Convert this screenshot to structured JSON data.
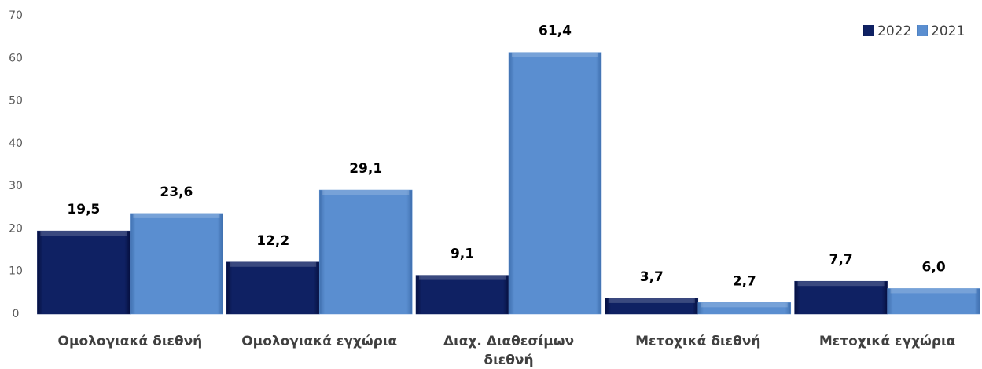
{
  "chart_data": {
    "type": "bar",
    "categories": [
      "Ομολογιακά διεθνή",
      "Ομολογιακά εγχώρια",
      "Διαχ. Διαθεσίμων διεθνή",
      "Μετοχικά διεθνή",
      "Μετοχικά εγχώρια"
    ],
    "series": [
      {
        "name": "2022",
        "color": "#0f2163",
        "values": [
          19.5,
          12.2,
          9.1,
          3.7,
          7.7
        ],
        "value_labels": [
          "19,5",
          "12,2",
          "9,1",
          "3,7",
          "7,7"
        ]
      },
      {
        "name": "2021",
        "color": "#5a8ed0",
        "values": [
          23.6,
          29.1,
          61.4,
          2.7,
          6.0
        ],
        "value_labels": [
          "23,6",
          "29,1",
          "61,4",
          "2,7",
          "6,0"
        ]
      }
    ],
    "ylim": [
      0,
      70
    ],
    "yticks": [
      0,
      10,
      20,
      30,
      40,
      50,
      60,
      70
    ],
    "legend": "top-right"
  }
}
